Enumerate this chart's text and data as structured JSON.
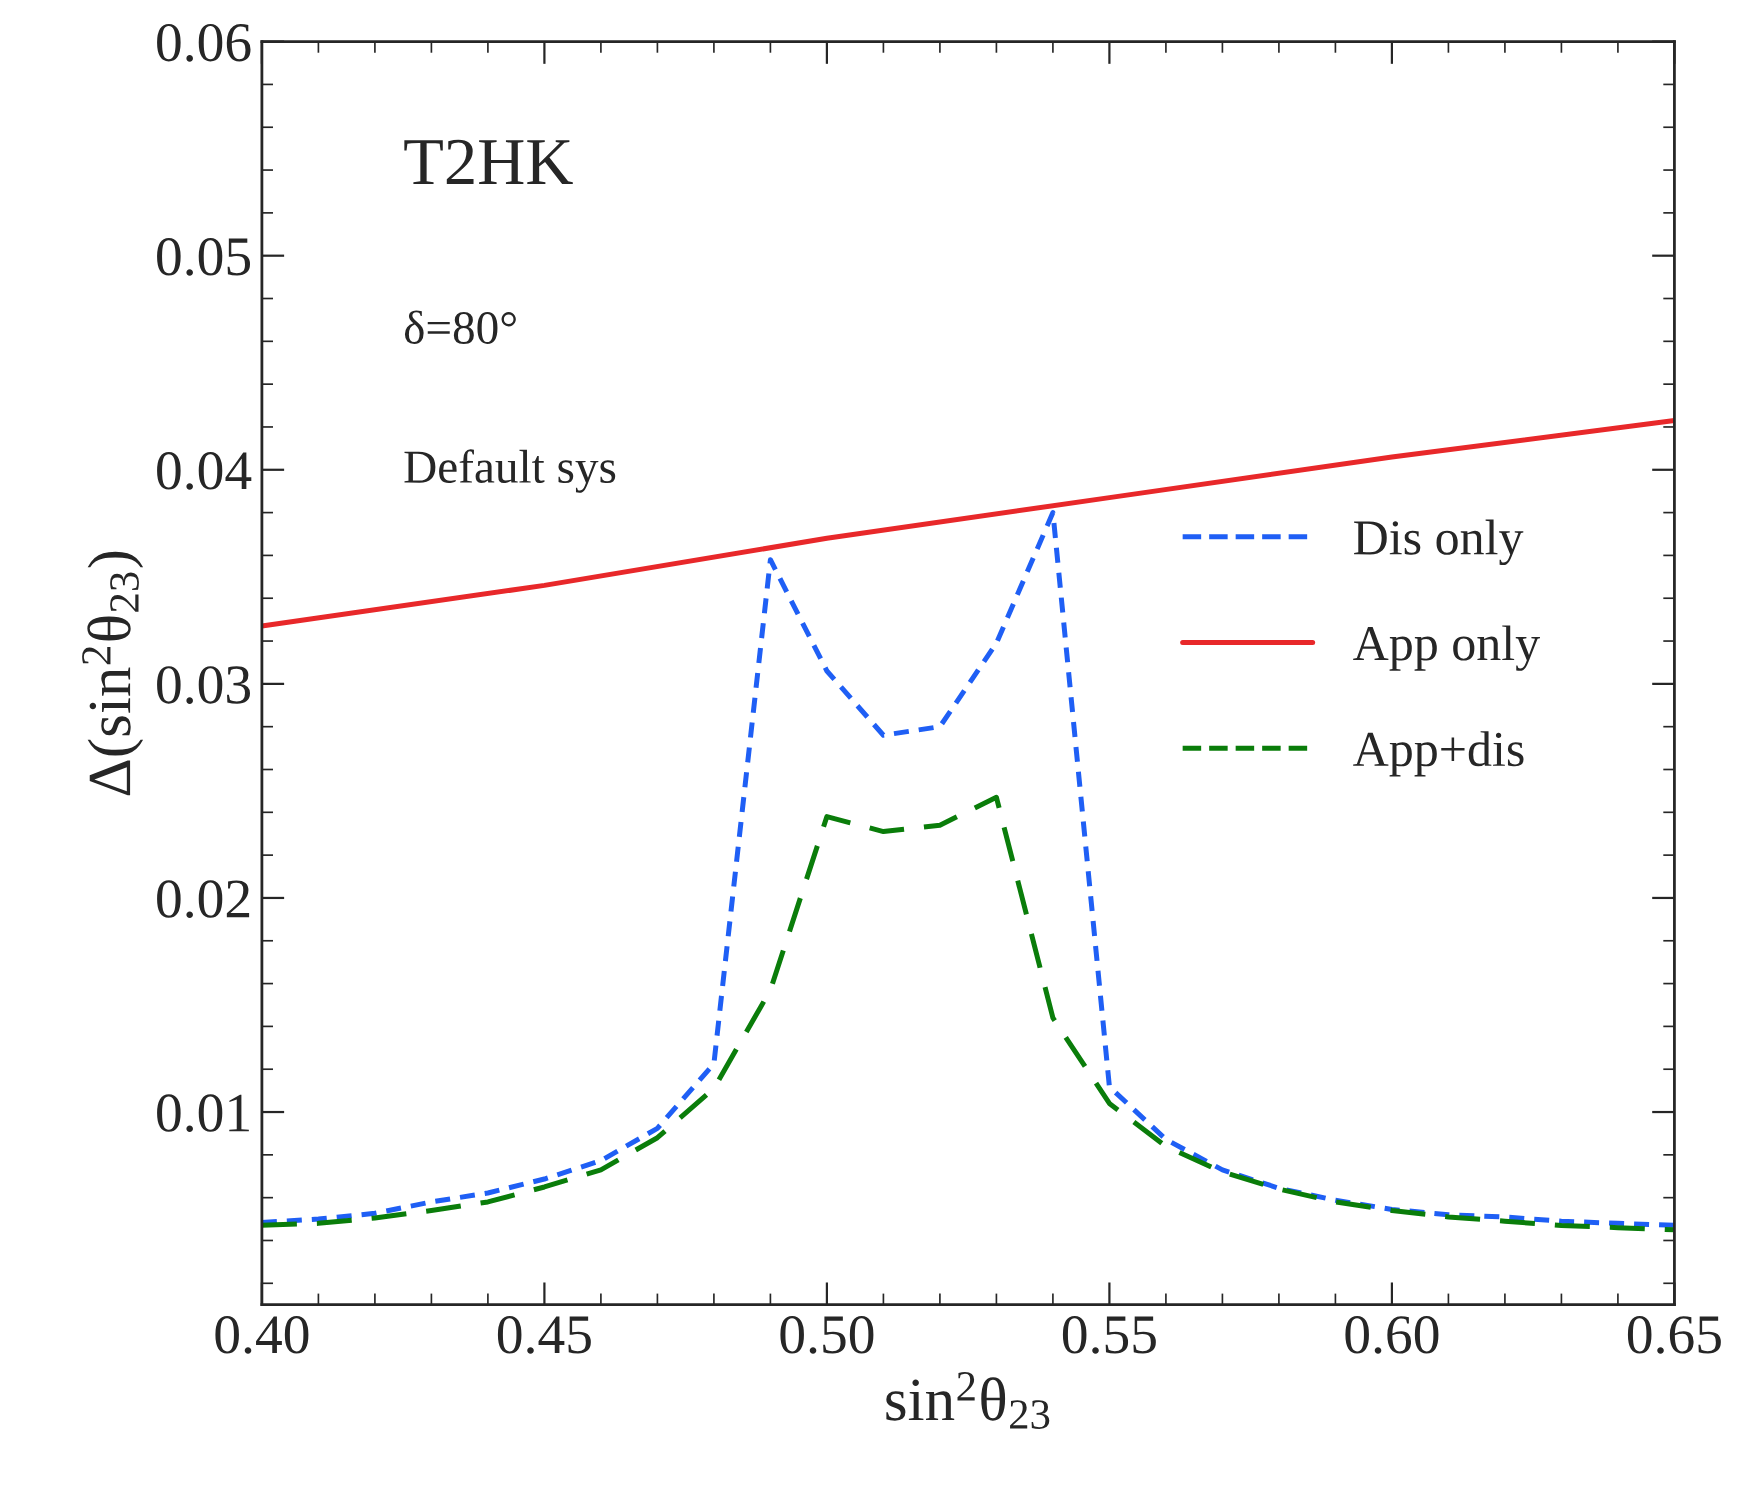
{
  "chart_data": {
    "type": "line",
    "xlabel": "sin$^{2}$θ$_{23}$",
    "ylabel": "Δ(sin$^{2}$θ$_{23}$)",
    "annotations": [
      "T2HK",
      "δ=80°",
      "Default sys"
    ],
    "x": [
      0.4,
      0.41,
      0.42,
      0.43,
      0.44,
      0.45,
      0.46,
      0.47,
      0.48,
      0.49,
      0.5,
      0.51,
      0.52,
      0.53,
      0.54,
      0.55,
      0.56,
      0.57,
      0.58,
      0.59,
      0.6,
      0.61,
      0.62,
      0.63,
      0.64,
      0.65
    ],
    "series": [
      {
        "name": "Dis only",
        "color": "#1f5ff5",
        "line_style": "dotted",
        "values": [
          0.00484,
          0.005,
          0.00527,
          0.0058,
          0.00622,
          0.00687,
          0.00773,
          0.00924,
          0.01226,
          0.0358,
          0.0306,
          0.0276,
          0.028,
          0.0319,
          0.038,
          0.01118,
          0.00872,
          0.0073,
          0.00644,
          0.00588,
          0.00545,
          0.0052,
          0.0051,
          0.0049,
          0.0048,
          0.00471
        ]
      },
      {
        "name": "App only",
        "color": "#e8282a",
        "line_style": "solid",
        "x": [
          0.4,
          0.45,
          0.5,
          0.55,
          0.6,
          0.65
        ],
        "values": [
          0.0327,
          0.0346,
          0.0368,
          0.0387,
          0.0406,
          0.0423
        ]
      },
      {
        "name": "App+dis",
        "color": "#0a7d0a",
        "line_style": "dashed",
        "values": [
          0.00471,
          0.0048,
          0.00505,
          0.0054,
          0.0058,
          0.0065,
          0.0073,
          0.0088,
          0.0111,
          0.0157,
          0.0238,
          0.0231,
          0.0234,
          0.0247,
          0.0144,
          0.0104,
          0.0084,
          0.0072,
          0.0064,
          0.0058,
          0.0054,
          0.0051,
          0.0049,
          0.0047,
          0.0046,
          0.0045
        ]
      }
    ],
    "xlim": [
      0.4,
      0.65
    ],
    "xticks": [
      {
        "value": 0.4,
        "label": "0.40"
      },
      {
        "value": 0.45,
        "label": "0.45"
      },
      {
        "value": 0.5,
        "label": "0.50"
      },
      {
        "value": 0.55,
        "label": "0.55"
      },
      {
        "value": 0.6,
        "label": "0.60"
      },
      {
        "value": 0.65,
        "label": "0.65"
      }
    ],
    "ylim": [
      0.001,
      0.06
    ],
    "yticks": [
      0.01,
      0.02,
      0.03,
      0.04,
      0.05,
      0.06
    ],
    "grid": false,
    "legend": "right",
    "marker": "none"
  }
}
